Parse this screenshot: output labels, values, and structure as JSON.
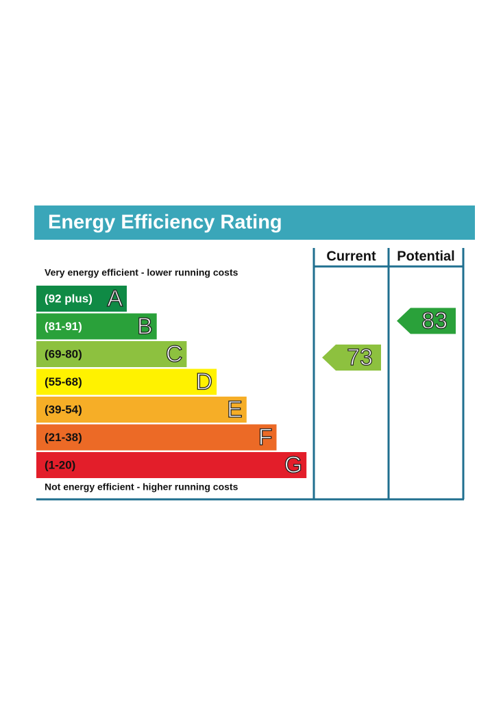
{
  "title": "Energy Efficiency Rating",
  "top_note": "Very energy efficient - lower running costs",
  "bottom_note": "Not energy efficient - higher running costs",
  "bands": [
    {
      "range": "(92 plus)",
      "letter": "A",
      "color": "#0f8a45",
      "text_color": "#ffffff"
    },
    {
      "range": "(81-91)",
      "letter": "B",
      "color": "#2aa13a",
      "text_color": "#ffffff"
    },
    {
      "range": "(69-80)",
      "letter": "C",
      "color": "#8dc13f",
      "text_color": "#111111"
    },
    {
      "range": "(55-68)",
      "letter": "D",
      "color": "#fff200",
      "text_color": "#111111"
    },
    {
      "range": "(39-54)",
      "letter": "E",
      "color": "#f6ae27",
      "text_color": "#111111"
    },
    {
      "range": "(21-38)",
      "letter": "F",
      "color": "#ec6a26",
      "text_color": "#111111"
    },
    {
      "range": "(1-20)",
      "letter": "G",
      "color": "#e31e2a",
      "text_color": "#111111"
    }
  ],
  "ratings": [
    {
      "heading": "Current",
      "value": 73,
      "color": "#8dc13f"
    },
    {
      "heading": "Potential",
      "value": 83,
      "color": "#2aa13a"
    }
  ]
}
